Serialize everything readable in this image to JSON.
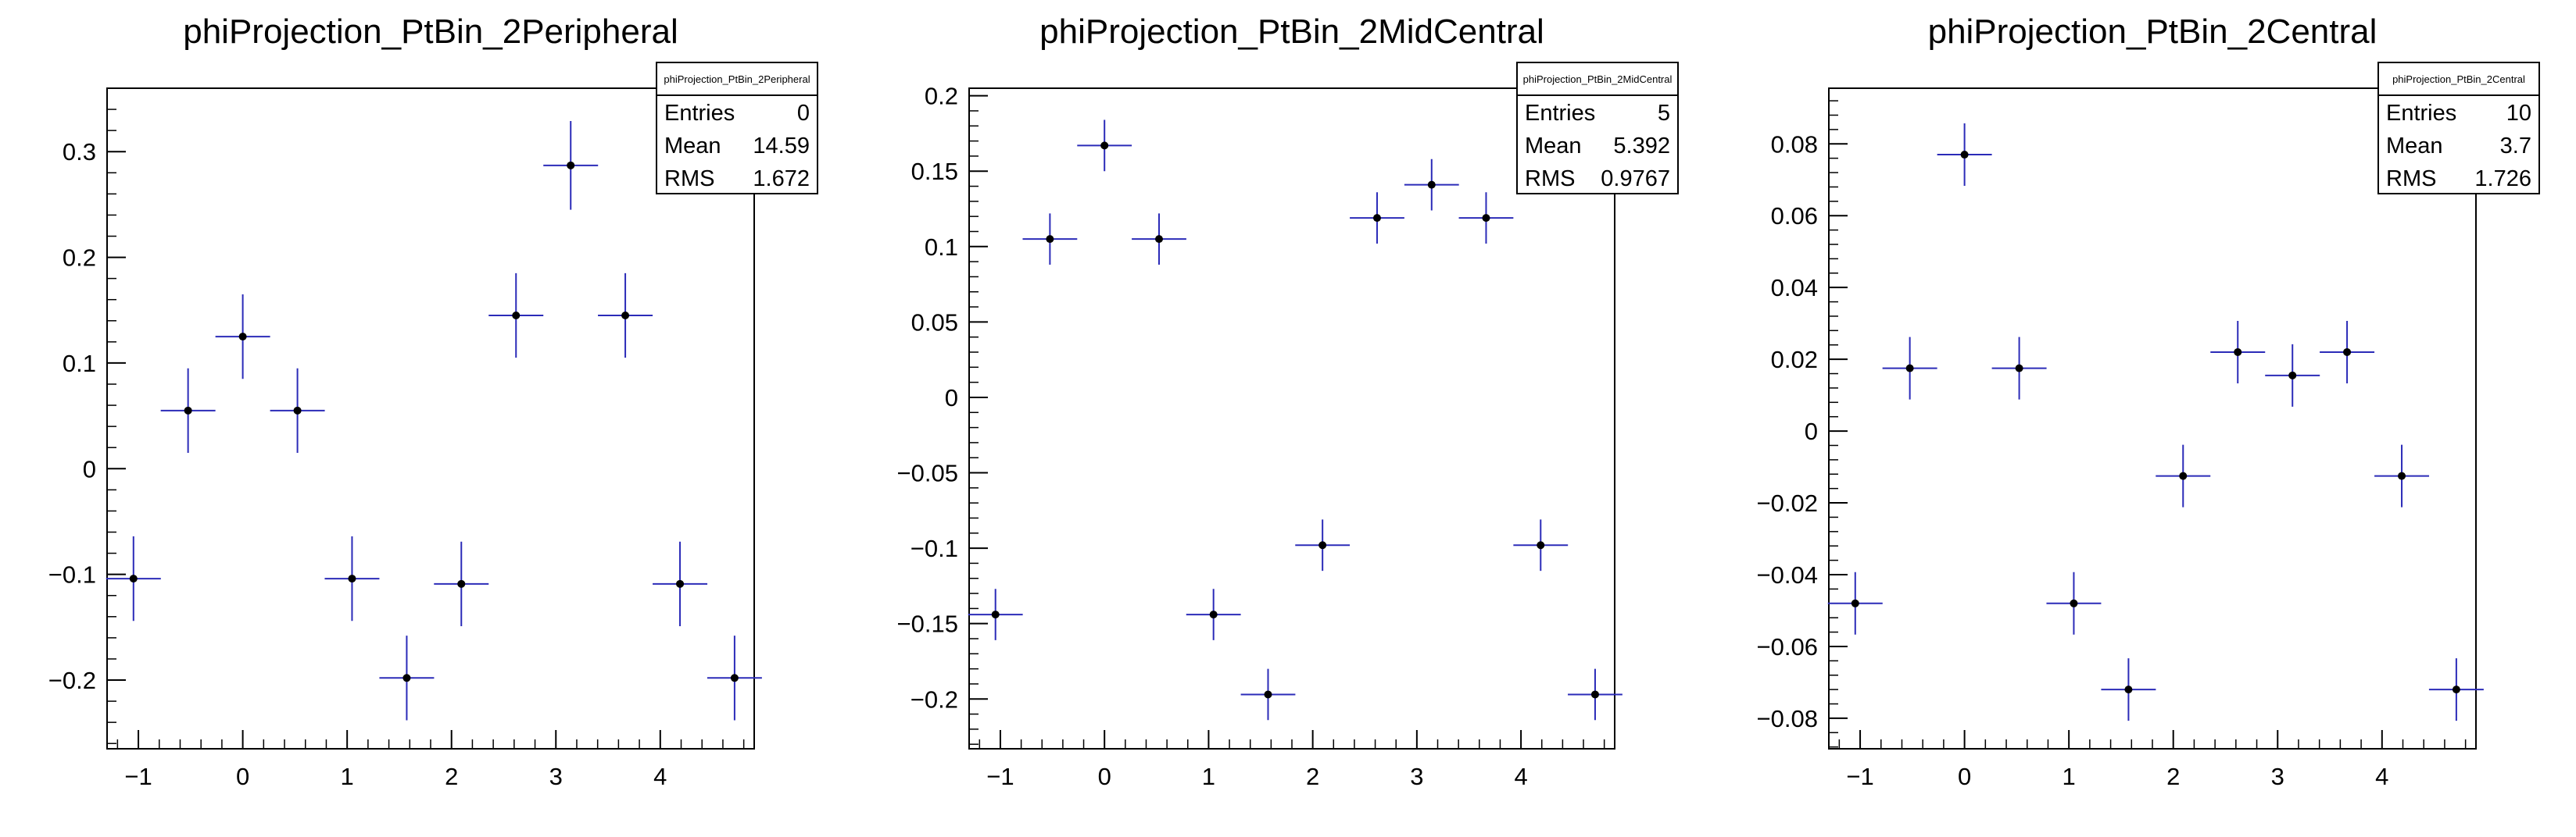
{
  "colors": {
    "error_bar": "#2b2bb8",
    "marker": "#000000",
    "frame": "#000000",
    "stats_fill": "#ffffff"
  },
  "chart_data": [
    {
      "type": "scatter",
      "title": "phiProjection_PtBin_2Peripheral",
      "xlabel": "",
      "ylabel": "",
      "xlim": [
        -1.3,
        4.9
      ],
      "ylim": [
        -0.265,
        0.36
      ],
      "xticks": [
        -1,
        0,
        1,
        2,
        3,
        4
      ],
      "yticks": [
        -0.2,
        -0.1,
        0,
        0.1,
        0.2,
        0.3
      ],
      "ytick_labels": [
        "−0.2",
        "−0.1",
        "0",
        "0.1",
        "0.2",
        "0.3"
      ],
      "xtick_labels": [
        "−1",
        "0",
        "1",
        "2",
        "3",
        "4"
      ],
      "x": [
        -1.047,
        -0.524,
        0.0,
        0.524,
        1.047,
        1.571,
        2.094,
        2.618,
        3.142,
        3.665,
        4.189,
        4.712
      ],
      "y": [
        -0.104,
        0.055,
        0.125,
        0.055,
        -0.104,
        -0.198,
        -0.109,
        0.145,
        0.287,
        0.145,
        -0.109,
        -0.198
      ],
      "yerr": [
        0.04,
        0.04,
        0.04,
        0.04,
        0.04,
        0.04,
        0.04,
        0.04,
        0.042,
        0.04,
        0.04,
        0.04
      ],
      "xerr": 0.262,
      "stats": {
        "name": "phiProjection_PtBin_2Peripheral",
        "rows": [
          {
            "label": "Entries",
            "value": "0"
          },
          {
            "label": "Mean",
            "value": "14.59"
          },
          {
            "label": "RMS",
            "value": "1.672"
          }
        ]
      },
      "grid": false,
      "legend": "top-right"
    },
    {
      "type": "scatter",
      "title": "phiProjection_PtBin_2MidCentral",
      "xlabel": "",
      "ylabel": "",
      "xlim": [
        -1.3,
        4.9
      ],
      "ylim": [
        -0.233,
        0.205
      ],
      "xticks": [
        -1,
        0,
        1,
        2,
        3,
        4
      ],
      "yticks": [
        -0.2,
        -0.15,
        -0.1,
        -0.05,
        0,
        0.05,
        0.1,
        0.15,
        0.2
      ],
      "ytick_labels": [
        "−0.2",
        "−0.15",
        "−0.1",
        "−0.05",
        "0",
        "0.05",
        "0.1",
        "0.15",
        "0.2"
      ],
      "xtick_labels": [
        "−1",
        "0",
        "1",
        "2",
        "3",
        "4"
      ],
      "x": [
        -1.047,
        -0.524,
        0.0,
        0.524,
        1.047,
        1.571,
        2.094,
        2.618,
        3.142,
        3.665,
        4.189,
        4.712
      ],
      "y": [
        -0.144,
        0.105,
        0.167,
        0.105,
        -0.144,
        -0.197,
        -0.098,
        0.119,
        0.141,
        0.119,
        -0.098,
        -0.197
      ],
      "yerr": [
        0.017,
        0.017,
        0.017,
        0.017,
        0.017,
        0.017,
        0.017,
        0.017,
        0.017,
        0.017,
        0.017,
        0.017
      ],
      "xerr": 0.262,
      "stats": {
        "name": "phiProjection_PtBin_2MidCentral",
        "rows": [
          {
            "label": "Entries",
            "value": "5"
          },
          {
            "label": "Mean",
            "value": "5.392"
          },
          {
            "label": "RMS",
            "value": "0.9767"
          }
        ]
      },
      "grid": false,
      "legend": "top-right"
    },
    {
      "type": "scatter",
      "title": "phiProjection_PtBin_2Central",
      "xlabel": "",
      "ylabel": "",
      "xlim": [
        -1.3,
        4.9
      ],
      "ylim": [
        -0.0885,
        0.0955
      ],
      "xticks": [
        -1,
        0,
        1,
        2,
        3,
        4
      ],
      "yticks": [
        -0.08,
        -0.06,
        -0.04,
        -0.02,
        0,
        0.02,
        0.04,
        0.06,
        0.08
      ],
      "ytick_labels": [
        "−0.08",
        "−0.06",
        "−0.04",
        "−0.02",
        "0",
        "0.02",
        "0.04",
        "0.06",
        "0.08"
      ],
      "xtick_labels": [
        "−1",
        "0",
        "1",
        "2",
        "3",
        "4"
      ],
      "x": [
        -1.047,
        -0.524,
        0.0,
        0.524,
        1.047,
        1.571,
        2.094,
        2.618,
        3.142,
        3.665,
        4.189,
        4.712
      ],
      "y": [
        -0.048,
        0.0175,
        0.077,
        0.0175,
        -0.048,
        -0.072,
        -0.0125,
        0.022,
        0.0155,
        0.022,
        -0.0125,
        -0.072
      ],
      "yerr": [
        0.0087,
        0.0087,
        0.0087,
        0.0087,
        0.0087,
        0.0087,
        0.0087,
        0.0087,
        0.0087,
        0.0087,
        0.0087,
        0.0087
      ],
      "xerr": 0.262,
      "stats": {
        "name": "phiProjection_PtBin_2Central",
        "rows": [
          {
            "label": "Entries",
            "value": "10"
          },
          {
            "label": "Mean",
            "value": "3.7"
          },
          {
            "label": "RMS",
            "value": "1.726"
          }
        ]
      },
      "grid": false,
      "legend": "top-right"
    }
  ]
}
